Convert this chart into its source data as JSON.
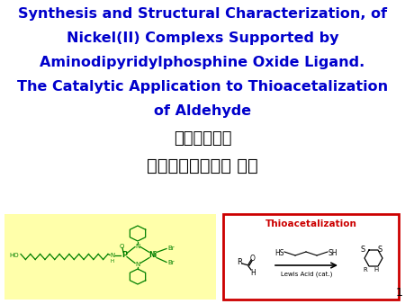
{
  "title_lines": [
    "Synthesis and Structural Characterization, of",
    "Nickel(II) Complexs Supported by",
    "Aminodipyridylphosphine Oxide Ligand.",
    "The Catalytic Application to Thioacetalization",
    "of Aldehyde"
  ],
  "title_color": "#0000CC",
  "title_fontsize": 11.5,
  "student_line": "學生：江柏誤",
  "advisor_line": "指導教授：於淡君 博士",
  "cjk_fontsize": 13,
  "cjk_color": "#000000",
  "bg_color": "#ffffff",
  "page_number": "1",
  "left_box_color": "#FFFFAA",
  "right_box_border_color": "#CC0000",
  "right_box_title": "Thioacetalization",
  "right_box_title_color": "#CC0000",
  "green": "#008000"
}
